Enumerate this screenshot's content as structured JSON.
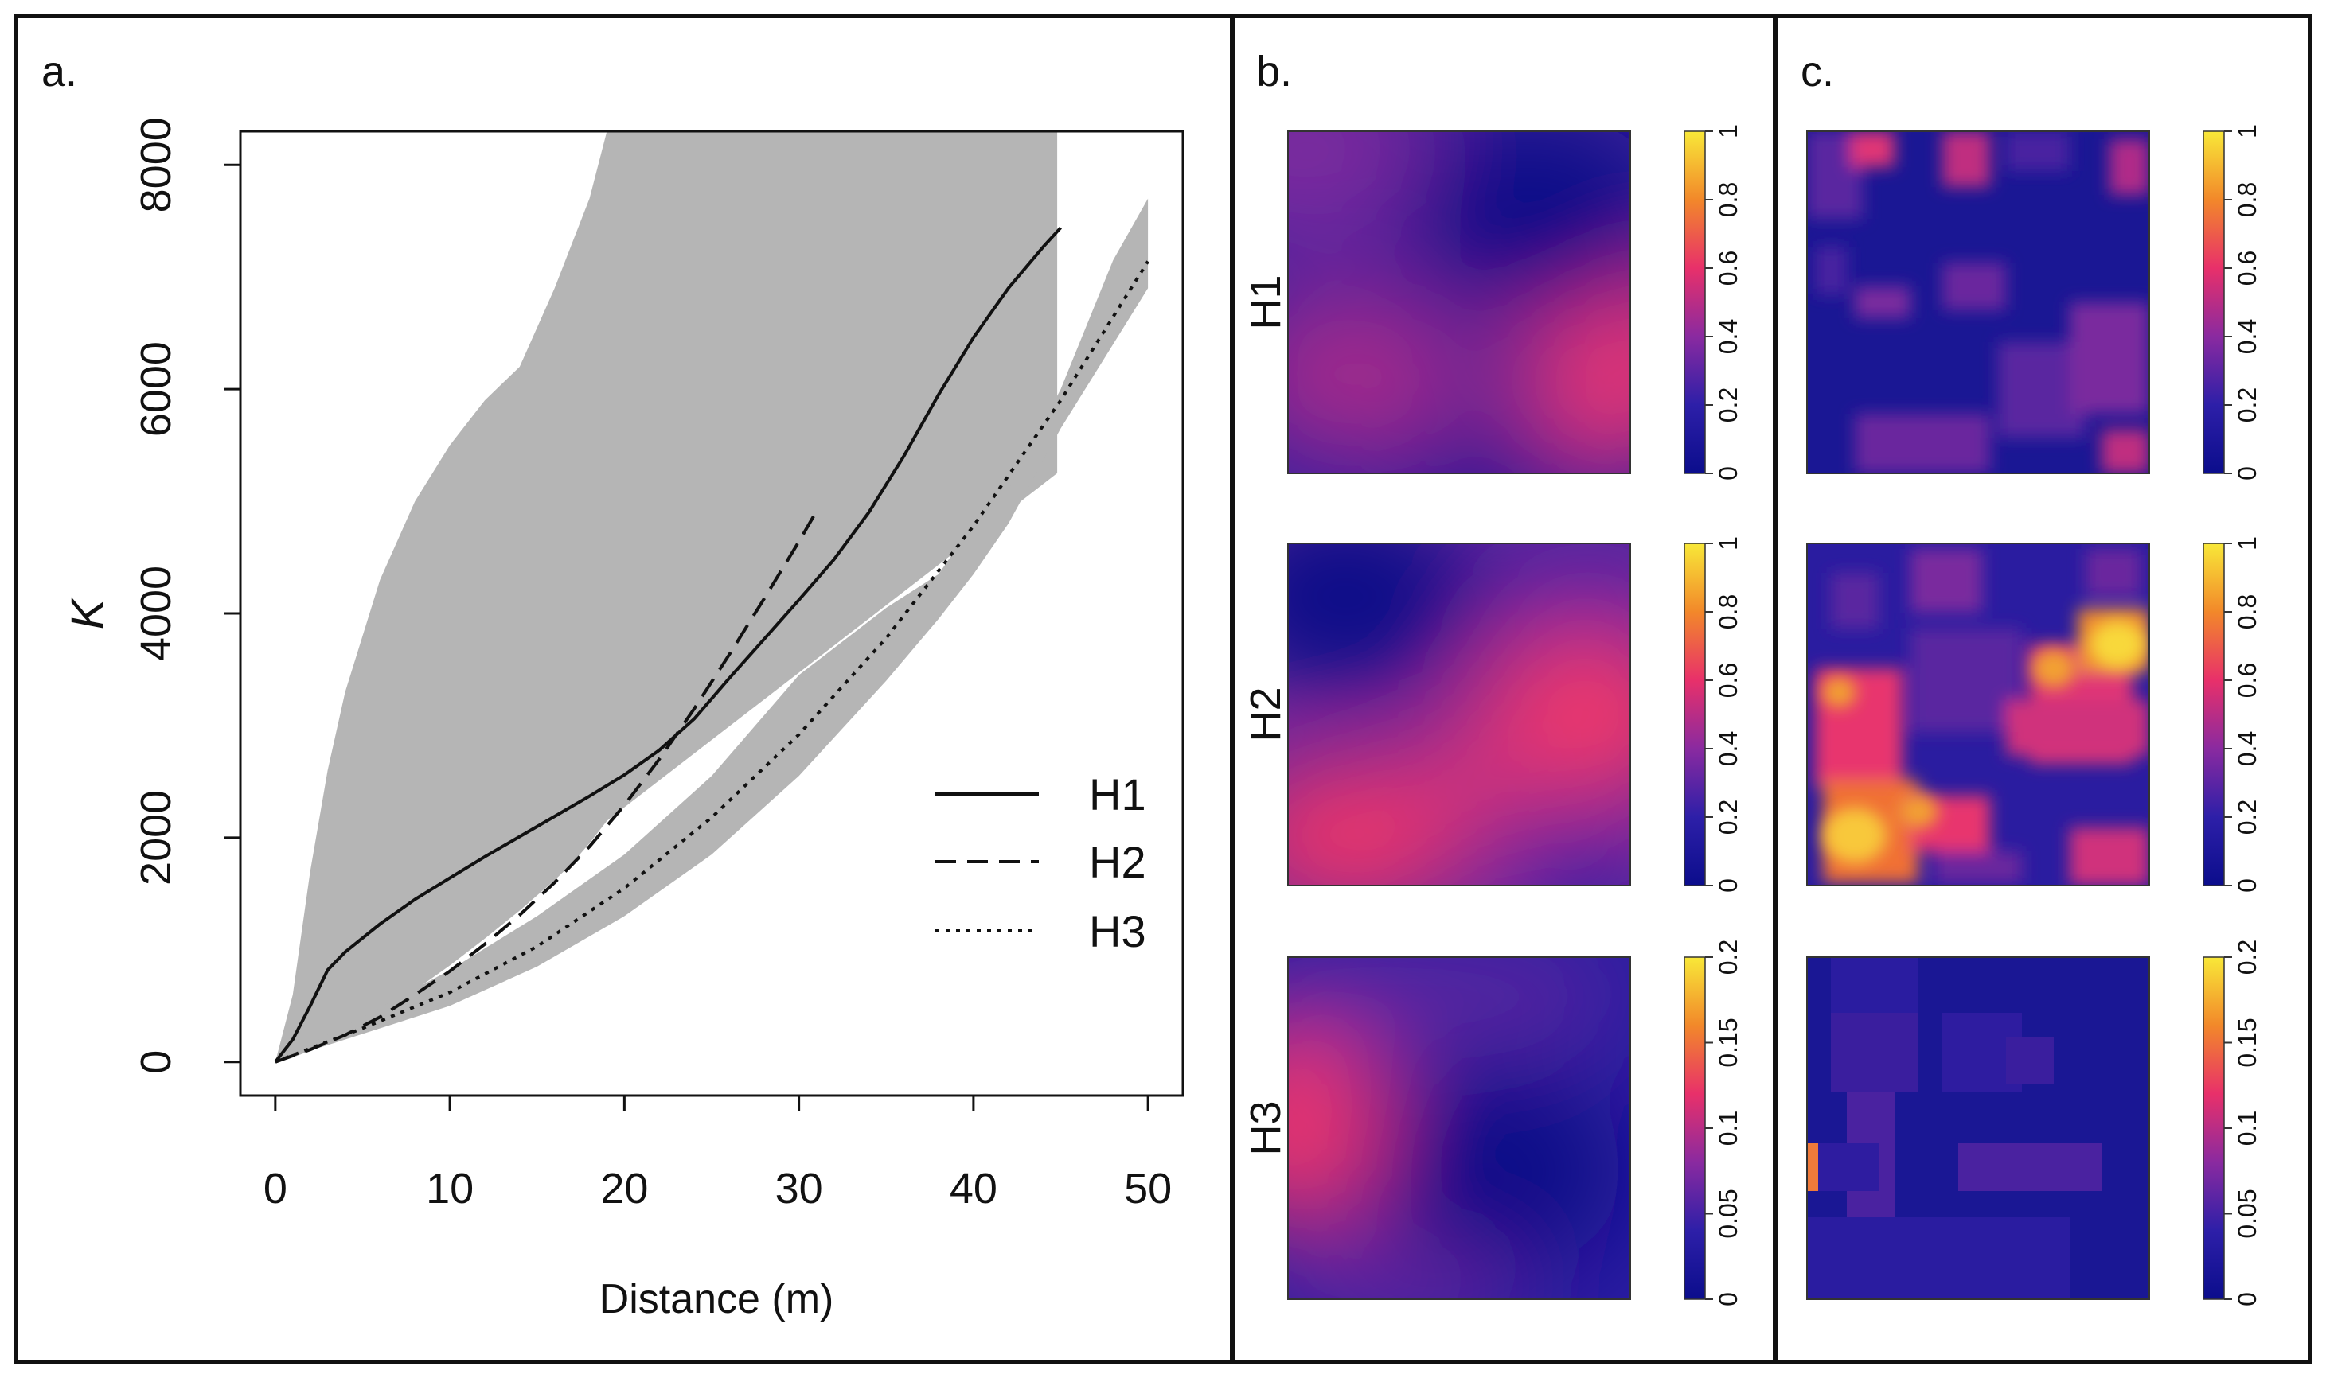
{
  "figure": {
    "panel_labels": [
      "a.",
      "b.",
      "c."
    ],
    "row_labels": [
      "H1",
      "H2",
      "H3"
    ]
  },
  "chart_data": [
    {
      "type": "line",
      "panel": "a.",
      "xlabel": "Distance (m)",
      "ylabel": "K",
      "xlim": [
        -2,
        52
      ],
      "ylim": [
        -300,
        8300
      ],
      "x_ticks": [
        0,
        10,
        20,
        30,
        40,
        50
      ],
      "y_ticks": [
        0,
        2000,
        4000,
        6000,
        8000
      ],
      "legend": {
        "position": "right",
        "entries": [
          "H1",
          "H2",
          "H3"
        ]
      },
      "series": [
        {
          "name": "H1",
          "style": "solid",
          "x": [
            0,
            1,
            2,
            3,
            4,
            6,
            8,
            10,
            12,
            14,
            16,
            18,
            20,
            22,
            24,
            26,
            28,
            30,
            32,
            34,
            36,
            38,
            40,
            42,
            44,
            45
          ],
          "y": [
            0,
            200,
            500,
            820,
            980,
            1230,
            1450,
            1640,
            1830,
            2010,
            2190,
            2370,
            2560,
            2780,
            3060,
            3420,
            3770,
            4120,
            4480,
            4900,
            5400,
            5950,
            6460,
            6900,
            7270,
            7440
          ],
          "band": {
            "x": [
              0,
              1,
              2,
              3,
              4,
              5,
              6,
              8,
              10,
              12,
              14,
              16,
              17,
              18,
              19,
              44.8
            ],
            "lower": [
              0,
              40,
              100,
              170,
              260,
              350,
              440,
              640,
              860,
              1100,
              1350,
              1620,
              1770,
              1950,
              2150,
              5250
            ],
            "upper": [
              0,
              600,
              1700,
              2600,
              3300,
              3800,
              4300,
              5000,
              5500,
              5900,
              6200,
              6900,
              7300,
              7700,
              8300,
              8300
            ],
            "upper_extends_beyond_axis": true
          }
        },
        {
          "name": "H2",
          "style": "dashed",
          "x": [
            0,
            2,
            4,
            6,
            8,
            10,
            12,
            14,
            16,
            18,
            20,
            22,
            24,
            26,
            28,
            30,
            31
          ],
          "y": [
            0,
            110,
            240,
            400,
            600,
            810,
            1050,
            1310,
            1600,
            1920,
            2290,
            2700,
            3150,
            3630,
            4130,
            4640,
            4910
          ]
        },
        {
          "name": "H3",
          "style": "dotted",
          "x": [
            0,
            5,
            10,
            15,
            20,
            25,
            30,
            35,
            40,
            45,
            50
          ],
          "y": [
            0,
            300,
            620,
            1030,
            1550,
            2180,
            2920,
            3780,
            4780,
            5900,
            7140
          ],
          "band": {
            "x": [
              0,
              5,
              10,
              15,
              20,
              25,
              30,
              35,
              38,
              40,
              42,
              45,
              48,
              50
            ],
            "lower": [
              0,
              250,
              500,
              850,
              1300,
              1850,
              2550,
              3400,
              3950,
              4350,
              4800,
              5650,
              6400,
              6900
            ],
            "upper": [
              0,
              400,
              820,
              1300,
              1850,
              2550,
              3450,
              4050,
              4350,
              4800,
              5100,
              6000,
              7150,
              7700
            ]
          }
        }
      ]
    },
    {
      "type": "heatmap",
      "panel": "b.",
      "rows": [
        {
          "label": "H1",
          "colorbar_ticks": [
            "0",
            "0.2",
            "0.4",
            "0.6",
            "0.8",
            "1"
          ]
        },
        {
          "label": "H2",
          "colorbar_ticks": [
            "0",
            "0.2",
            "0.4",
            "0.6",
            "0.8",
            "1"
          ]
        },
        {
          "label": "H3",
          "colorbar_ticks": [
            "0",
            "0.05",
            "0.1",
            "0.15",
            "0.2"
          ]
        }
      ]
    },
    {
      "type": "heatmap",
      "panel": "c.",
      "rows": [
        {
          "label": "H1",
          "colorbar_ticks": [
            "0",
            "0.2",
            "0.4",
            "0.6",
            "0.8",
            "1"
          ]
        },
        {
          "label": "H2",
          "colorbar_ticks": [
            "0",
            "0.2",
            "0.4",
            "0.6",
            "0.8",
            "1"
          ]
        },
        {
          "label": "H3",
          "colorbar_ticks": [
            "0",
            "0.05",
            "0.1",
            "0.15",
            "0.2"
          ]
        }
      ]
    }
  ]
}
